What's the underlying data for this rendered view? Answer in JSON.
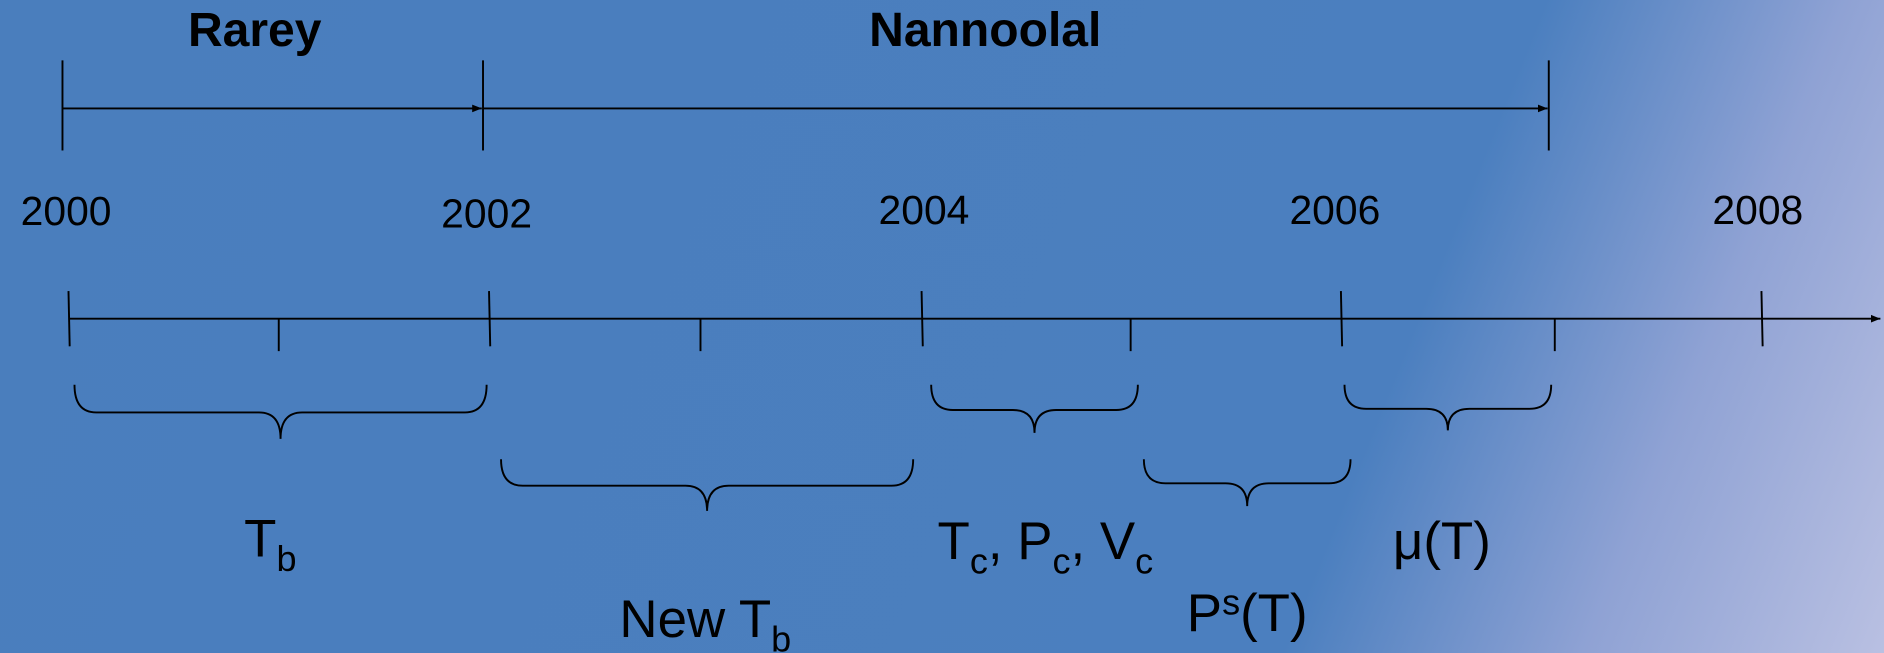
{
  "periods": [
    {
      "label": "Rarey"
    },
    {
      "label": "Nannoolal"
    }
  ],
  "years": [
    "2000",
    "2002",
    "2004",
    "2006",
    "2008"
  ],
  "properties": [
    {
      "segments": [
        {
          "text": "T"
        },
        {
          "text": "b",
          "style": "sub"
        }
      ]
    },
    {
      "segments": [
        {
          "text": "New T"
        },
        {
          "text": "b",
          "style": "sub"
        }
      ]
    },
    {
      "segments": [
        {
          "text": "T"
        },
        {
          "text": "c",
          "style": "sub"
        },
        {
          "text": ", P"
        },
        {
          "text": "c",
          "style": "sub"
        },
        {
          "text": ", V"
        },
        {
          "text": "c",
          "style": "sub"
        }
      ]
    },
    {
      "segments": [
        {
          "text": "P"
        },
        {
          "text": "s",
          "style": "sup"
        },
        {
          "text": "(T)"
        }
      ]
    },
    {
      "segments": [
        {
          "text": "μ(T)"
        }
      ]
    }
  ]
}
